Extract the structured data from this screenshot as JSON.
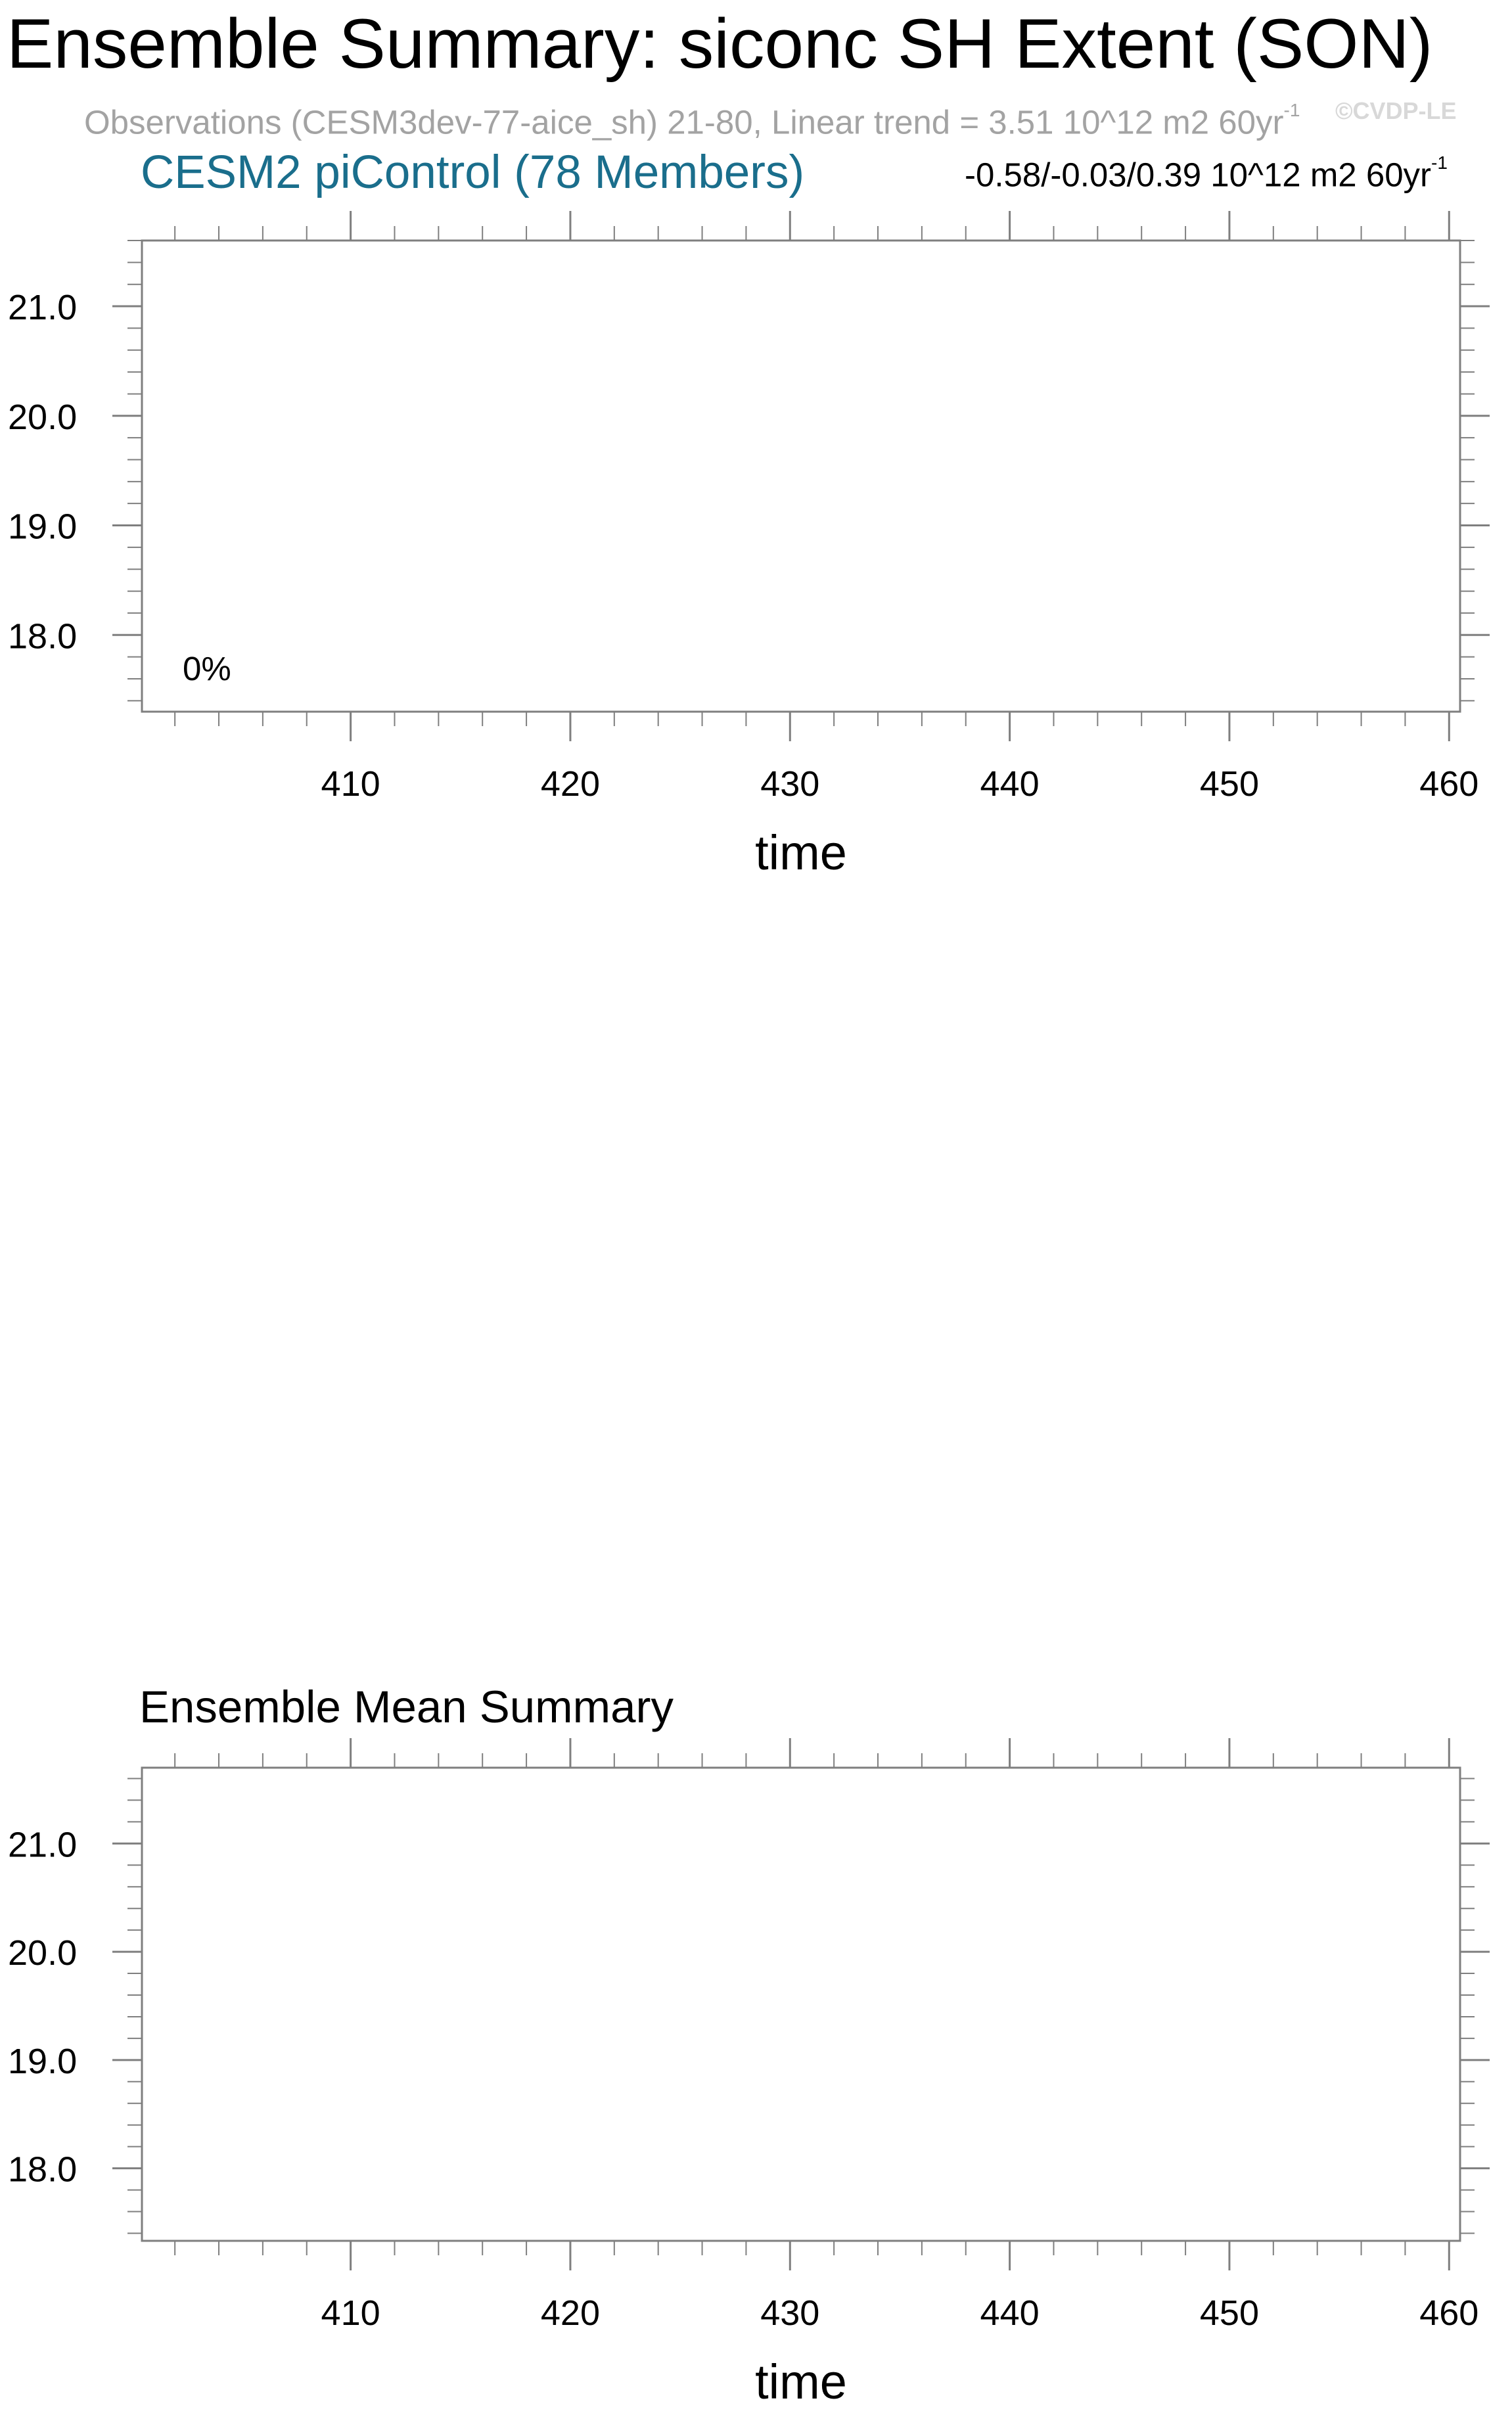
{
  "title": "Ensemble Summary: siconc SH Extent (SON)",
  "observations": {
    "text": "Observations (CESM3dev-77-aice_sh) 21-80, Linear trend = 3.51 10^12 m2 60yr",
    "exponent": "-1"
  },
  "watermark": "©CVDP-LE",
  "colors": {
    "ensemble_label": "#1a6e8c",
    "observations_text": "#a3a3a3",
    "axis": "#7f7f7f"
  },
  "panel1": {
    "subtitle": "CESM2 piControl (78 Members)",
    "range": {
      "text": "-0.58/-0.03/0.39 10^12 m2 60yr",
      "exponent": "-1"
    },
    "percent_label": "0%"
  },
  "panel2": {
    "title": "Ensemble Mean Summary"
  },
  "chart_data": [
    {
      "type": "line",
      "title": "CESM2 piControl (78 Members)",
      "xlabel": "time",
      "ylabel": "",
      "xlim": [
        400.5,
        460.5
      ],
      "ylim": [
        17.3,
        21.6
      ],
      "xticks": [
        410,
        420,
        430,
        440,
        450,
        460
      ],
      "xtick_labels": [
        "410",
        "420",
        "430",
        "440",
        "450",
        "460"
      ],
      "yticks": [
        18.0,
        19.0,
        20.0,
        21.0
      ],
      "ytick_labels": [
        "18.0",
        "19.0",
        "20.0",
        "21.0"
      ],
      "grid": false,
      "series": []
    },
    {
      "type": "line",
      "title": "Ensemble Mean Summary",
      "xlabel": "time",
      "ylabel": "",
      "xlim": [
        400.5,
        460.5
      ],
      "ylim": [
        17.33,
        21.7
      ],
      "xticks": [
        410,
        420,
        430,
        440,
        450,
        460
      ],
      "xtick_labels": [
        "410",
        "420",
        "430",
        "440",
        "450",
        "460"
      ],
      "yticks": [
        18.0,
        19.0,
        20.0,
        21.0
      ],
      "ytick_labels": [
        "18.0",
        "19.0",
        "20.0",
        "21.0"
      ],
      "grid": false,
      "series": []
    }
  ]
}
